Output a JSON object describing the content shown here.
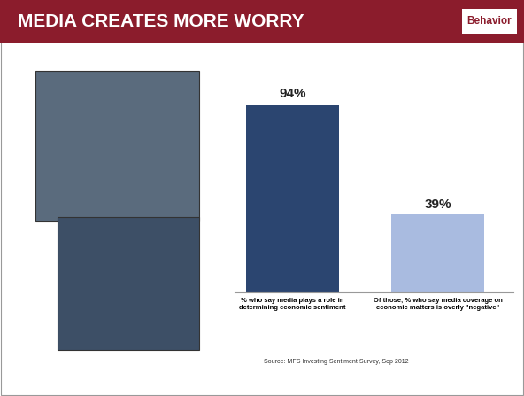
{
  "header": {
    "title": "MEDIA CREATES MORE WORRY",
    "tag": "Behavior"
  },
  "chart_data": {
    "type": "bar",
    "categories": [
      "% who say media plays a role in determining economic sentiment",
      "Of those, % who say media coverage on economic matters is overly \"negative\""
    ],
    "values": [
      94,
      39
    ],
    "value_labels": [
      "94%",
      "39%"
    ],
    "colors": [
      "#2b4570",
      "#a9bbe0"
    ],
    "ylim": [
      0,
      100
    ],
    "yticks": [],
    "data_labels": true,
    "tick_labels": "x",
    "grid": false
  },
  "source": "Source: MFS Investing Sentiment Survey, Sep 2012"
}
